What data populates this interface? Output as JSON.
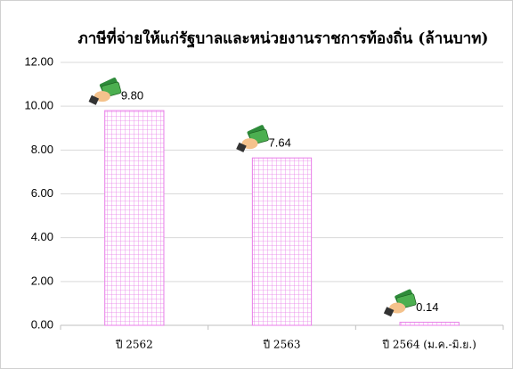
{
  "chart_data": {
    "type": "bar",
    "title": "ภาษีที่จ่ายให้แก่รัฐบาลและหน่วยงานราชการท้องถิ่น (ล้านบาท)",
    "categories": [
      "ปี 2562",
      "ปี 2563",
      "ปี 2564 (ม.ค.-มิ.ย.)"
    ],
    "values": [
      9.8,
      7.64,
      0.14
    ],
    "value_labels": [
      "9.80",
      "7.64",
      "0.14"
    ],
    "color": "#e87ce8",
    "ylim": [
      0,
      12
    ],
    "yticks": [
      {
        "value": 0,
        "label": "0.00"
      },
      {
        "value": 2,
        "label": "2.00"
      },
      {
        "value": 4,
        "label": "4.00"
      },
      {
        "value": 6,
        "label": "6.00"
      },
      {
        "value": 8,
        "label": "8.00"
      },
      {
        "value": 10,
        "label": "10.00"
      },
      {
        "value": 12,
        "label": "12.00"
      }
    ],
    "grid": true
  }
}
